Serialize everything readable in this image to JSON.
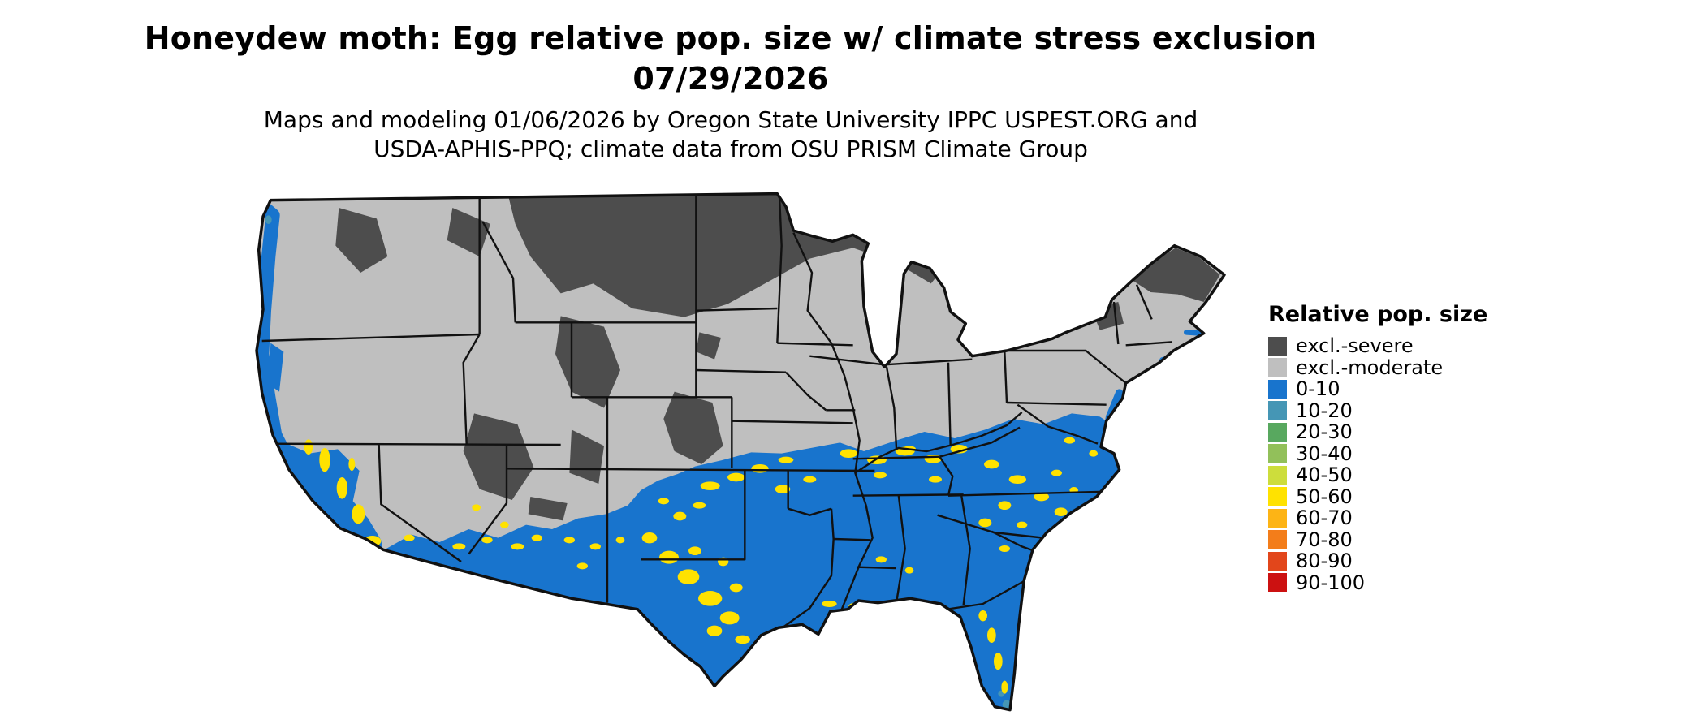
{
  "title": {
    "line1": "Honeydew moth: Egg relative pop. size w/ climate stress exclusion",
    "line2": "07/29/2026"
  },
  "subtitle": {
    "line1": "Maps and modeling 01/06/2026 by Oregon State University IPPC USPEST.ORG and",
    "line2": "USDA-APHIS-PPQ; climate data from OSU PRISM Climate Group"
  },
  "map": {
    "region": "Continental United States",
    "description": "Choropleth raster map of relative population size classes with climate stress exclusion zones",
    "boundary_color": "#111111"
  },
  "legend": {
    "title": "Relative pop. size",
    "items": [
      {
        "label": "excl.-severe",
        "color": "#4d4d4d"
      },
      {
        "label": "excl.-moderate",
        "color": "#bfbfbf"
      },
      {
        "label": "0-10",
        "color": "#1874cd"
      },
      {
        "label": "10-20",
        "color": "#4596b5"
      },
      {
        "label": "20-30",
        "color": "#58a85f"
      },
      {
        "label": "30-40",
        "color": "#92c05a"
      },
      {
        "label": "40-50",
        "color": "#cddd3c"
      },
      {
        "label": "50-60",
        "color": "#ffe200"
      },
      {
        "label": "60-70",
        "color": "#fdb415"
      },
      {
        "label": "70-80",
        "color": "#f37d1a"
      },
      {
        "label": "80-90",
        "color": "#e2461b"
      },
      {
        "label": "90-100",
        "color": "#cc1111"
      }
    ]
  }
}
